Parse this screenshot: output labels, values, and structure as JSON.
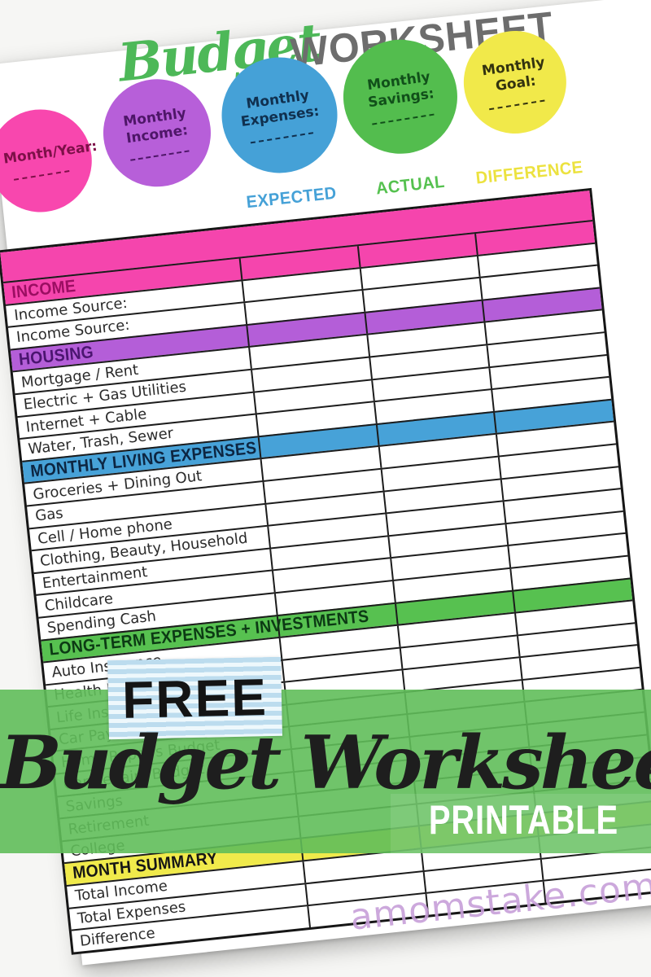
{
  "title": {
    "script": "Budget",
    "block": "WORKSHEET",
    "script_color": "#4db858",
    "block_color": "#6d6d6d"
  },
  "circles": [
    {
      "label": "Month/Year:",
      "color": "#f847ae",
      "text_color": "#7d1048"
    },
    {
      "label": "Monthly Income:",
      "color": "#b75fd9",
      "text_color": "#4e1668"
    },
    {
      "label": "Monthly Expenses:",
      "color": "#45a1d7",
      "text_color": "#10304f"
    },
    {
      "label": "Monthly Savings:",
      "color": "#53bd4e",
      "text_color": "#11501a"
    },
    {
      "label": "Monthly Goal:",
      "color": "#f1e94a",
      "text_color": "#33330f"
    }
  ],
  "columns": [
    {
      "label": "EXPECTED",
      "color": "#45a1d7"
    },
    {
      "label": "ACTUAL",
      "color": "#55c14f"
    },
    {
      "label": "DIFFERENCE",
      "color": "#ece23f"
    }
  ],
  "table": {
    "rows": [
      {
        "type": "bar",
        "label": "",
        "bg": "#f545ad",
        "fg": ""
      },
      {
        "type": "section",
        "label": "INCOME",
        "bg": "#f545ad",
        "fg": "#9b0e62"
      },
      {
        "type": "item",
        "label": "Income Source:"
      },
      {
        "type": "item",
        "label": "Income Source:"
      },
      {
        "type": "section",
        "label": "HOUSING",
        "bg": "#b45ed8",
        "fg": "#4b1570"
      },
      {
        "type": "item",
        "label": "Mortgage / Rent"
      },
      {
        "type": "item",
        "label": "Electric + Gas Utilities"
      },
      {
        "type": "item",
        "label": "Internet + Cable"
      },
      {
        "type": "item",
        "label": "Water, Trash, Sewer"
      },
      {
        "type": "section",
        "label": "MONTHLY LIVING EXPENSES",
        "bg": "#47a2d8",
        "fg": "#0d2642"
      },
      {
        "type": "item",
        "label": "Groceries + Dining Out"
      },
      {
        "type": "item",
        "label": "Gas"
      },
      {
        "type": "item",
        "label": "Cell / Home phone"
      },
      {
        "type": "item",
        "label": "Clothing, Beauty, Household"
      },
      {
        "type": "item",
        "label": "Entertainment"
      },
      {
        "type": "item",
        "label": "Childcare"
      },
      {
        "type": "item",
        "label": "Spending Cash"
      },
      {
        "type": "section",
        "label": "LONG-TERM EXPENSES + INVESTMENTS",
        "bg": "#57c150",
        "fg": "#0c3a14"
      },
      {
        "type": "item",
        "label": "Auto Insurance"
      },
      {
        "type": "item",
        "label": "Health Insurance"
      },
      {
        "type": "item",
        "label": "Life Insurance"
      },
      {
        "type": "item",
        "label": "Car Payment"
      },
      {
        "type": "item",
        "label": "Home Repairs Budget"
      },
      {
        "type": "item",
        "label": "Car Repairs Budget"
      },
      {
        "type": "item",
        "label": "Savings"
      },
      {
        "type": "item",
        "label": "Retirement"
      },
      {
        "type": "item",
        "label": "College"
      },
      {
        "type": "section",
        "label": "MONTH SUMMARY",
        "bg": "#f0ea4b",
        "fg": "#161616"
      },
      {
        "type": "item",
        "label": "Total Income"
      },
      {
        "type": "item",
        "label": "Total Expenses"
      },
      {
        "type": "item",
        "label": "Difference"
      }
    ]
  },
  "overlay": {
    "free_label": "FREE",
    "script_title": "Budget Worksheet",
    "subtitle": "PRINTABLE",
    "banner_color": "#61be5a",
    "tape_color": "#bcdcee"
  },
  "watermark": {
    "text": "amomstake.com",
    "color": "#c79fd9"
  }
}
